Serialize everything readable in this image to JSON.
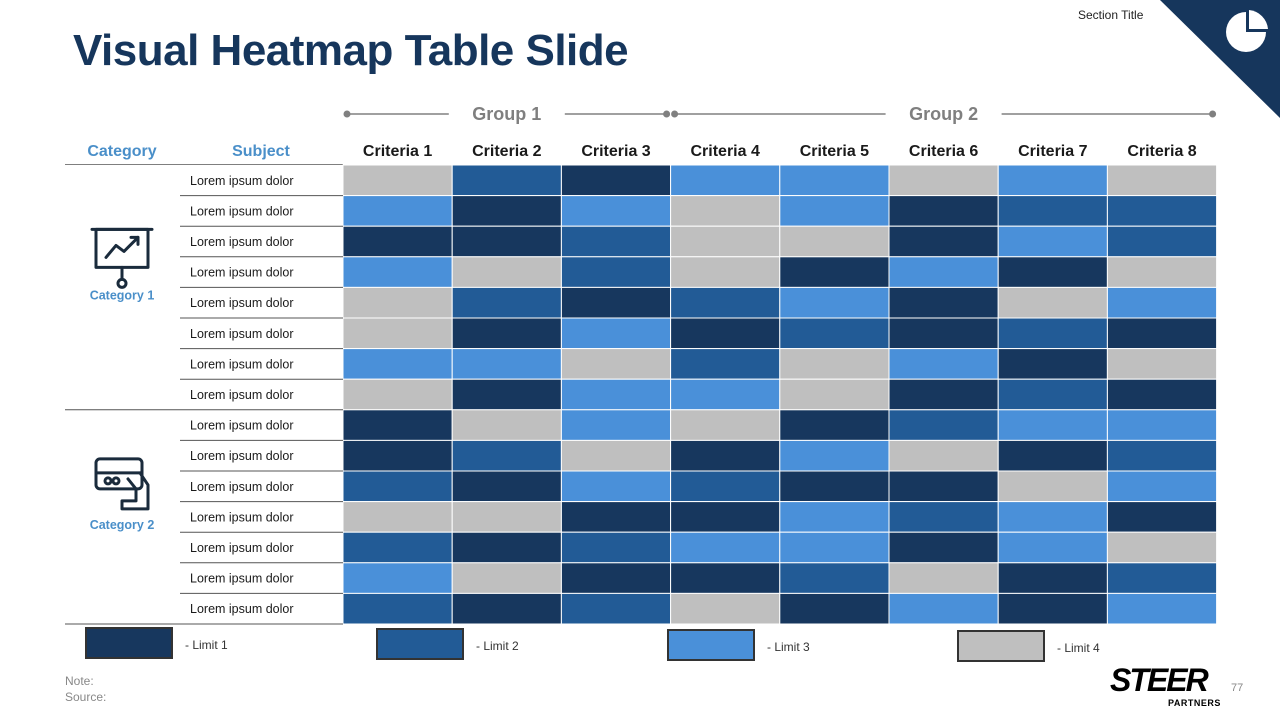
{
  "header": {
    "section_title": "Section Title",
    "page_title": "Visual Heatmap Table Slide"
  },
  "colors": {
    "limit1": "#17375e",
    "limit2": "#225b96",
    "limit3": "#4a90d9",
    "limit4": "#bfbfbf",
    "title": "#16365c",
    "category_label": "#4a8fc9",
    "corner": "#16365c",
    "group_line": "#808080"
  },
  "chart_data": {
    "type": "heatmap",
    "title": "Visual Heatmap Table Slide",
    "groups": [
      {
        "label": "Group 1",
        "criteria": [
          "Criteria 1",
          "Criteria 2",
          "Criteria 3"
        ]
      },
      {
        "label": "Group 2",
        "criteria": [
          "Criteria 4",
          "Criteria 5",
          "Criteria 6",
          "Criteria 7",
          "Criteria 8"
        ]
      }
    ],
    "columns": [
      "Criteria 1",
      "Criteria 2",
      "Criteria 3",
      "Criteria 4",
      "Criteria 5",
      "Criteria 6",
      "Criteria 7",
      "Criteria 8"
    ],
    "column_header_category": "Category",
    "column_header_subject": "Subject",
    "categories": [
      {
        "label": "Category 1",
        "icon": "presentation-chart-icon",
        "row_count": 8
      },
      {
        "label": "Category 2",
        "icon": "credit-card-hand-icon",
        "row_count": 7
      }
    ],
    "rows": [
      "Lorem ipsum dolor",
      "Lorem ipsum dolor",
      "Lorem ipsum dolor",
      "Lorem ipsum dolor",
      "Lorem ipsum dolor",
      "Lorem ipsum dolor",
      "Lorem ipsum dolor",
      "Lorem ipsum dolor",
      "Lorem ipsum dolor",
      "Lorem ipsum dolor",
      "Lorem ipsum dolor",
      "Lorem ipsum dolor",
      "Lorem ipsum dolor",
      "Lorem ipsum dolor",
      "Lorem ipsum dolor"
    ],
    "levels": [
      {
        "value": 1,
        "label": "- Limit 1"
      },
      {
        "value": 2,
        "label": "- Limit 2"
      },
      {
        "value": 3,
        "label": "- Limit 3"
      },
      {
        "value": 4,
        "label": "- Limit 4"
      }
    ],
    "values": [
      [
        4,
        2,
        1,
        3,
        3,
        4,
        3,
        4
      ],
      [
        3,
        1,
        3,
        4,
        3,
        1,
        2,
        2
      ],
      [
        1,
        1,
        2,
        4,
        4,
        1,
        3,
        2
      ],
      [
        3,
        4,
        2,
        4,
        1,
        3,
        1,
        4
      ],
      [
        4,
        2,
        1,
        2,
        3,
        1,
        4,
        3
      ],
      [
        4,
        1,
        3,
        1,
        2,
        1,
        2,
        1
      ],
      [
        3,
        3,
        4,
        2,
        4,
        3,
        1,
        4
      ],
      [
        4,
        1,
        3,
        3,
        4,
        1,
        2,
        1
      ],
      [
        1,
        4,
        3,
        4,
        1,
        2,
        3,
        3
      ],
      [
        1,
        2,
        4,
        1,
        3,
        4,
        1,
        2
      ],
      [
        2,
        1,
        3,
        2,
        1,
        1,
        4,
        3
      ],
      [
        4,
        4,
        1,
        1,
        3,
        2,
        3,
        1
      ],
      [
        2,
        1,
        2,
        3,
        3,
        1,
        3,
        4
      ],
      [
        3,
        4,
        1,
        1,
        2,
        4,
        1,
        2
      ],
      [
        2,
        1,
        2,
        4,
        1,
        3,
        1,
        3
      ]
    ]
  },
  "footer": {
    "note": "Note:",
    "source": "Source:",
    "logo_text": "STEER",
    "logo_sub": "PARTNERS",
    "page_number": "77"
  }
}
